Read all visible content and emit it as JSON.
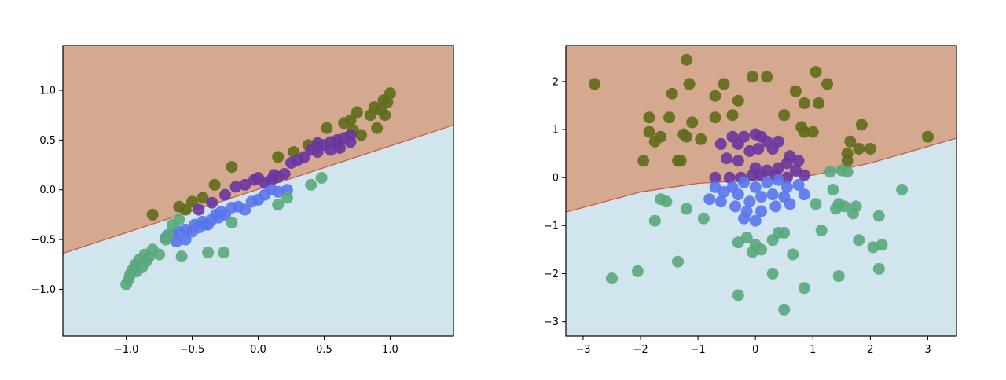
{
  "chart_data": [
    {
      "type": "scatter",
      "xlim": [
        -1.48,
        1.48
      ],
      "ylim": [
        -1.47,
        1.45
      ],
      "xticks": [
        -1.0,
        -0.5,
        0.0,
        0.5,
        1.0
      ],
      "yticks": [
        -1.0,
        -0.5,
        0.0,
        0.5,
        1.0
      ],
      "xtick_labels": [
        "−1.0",
        "−0.5",
        "0.0",
        "0.5",
        "1.0"
      ],
      "ytick_labels": [
        "−1.0",
        "−0.5",
        "0.0",
        "0.5",
        "1.0"
      ],
      "grid": false,
      "decision_boundary": {
        "x": [
          -1.48,
          1.48
        ],
        "y": [
          -0.64,
          0.65
        ]
      },
      "region_colors": {
        "above": "#d5a890",
        "below": "#d1e5ef"
      },
      "series": [
        {
          "color": "#5f6b1b",
          "points": [
            [
              -0.8,
              -0.25
            ],
            [
              -0.6,
              -0.17
            ],
            [
              -0.5,
              -0.12
            ],
            [
              -0.42,
              -0.08
            ],
            [
              -0.33,
              0.05
            ],
            [
              -0.2,
              0.23
            ],
            [
              0.15,
              0.33
            ],
            [
              0.27,
              0.38
            ],
            [
              0.38,
              0.45
            ],
            [
              0.45,
              0.43
            ],
            [
              0.52,
              0.62
            ],
            [
              0.6,
              0.45
            ],
            [
              0.65,
              0.67
            ],
            [
              0.7,
              0.7
            ],
            [
              0.75,
              0.78
            ],
            [
              0.78,
              0.55
            ],
            [
              0.85,
              0.75
            ],
            [
              0.88,
              0.83
            ],
            [
              0.9,
              0.62
            ],
            [
              0.93,
              0.8
            ],
            [
              0.95,
              0.9
            ],
            [
              0.96,
              0.75
            ],
            [
              0.98,
              0.88
            ],
            [
              1.0,
              0.97
            ],
            [
              -0.55,
              -0.2
            ],
            [
              0.72,
              0.6
            ]
          ]
        },
        {
          "color": "#6a35a0",
          "points": [
            [
              -0.45,
              -0.2
            ],
            [
              -0.35,
              -0.13
            ],
            [
              -0.25,
              -0.05
            ],
            [
              -0.17,
              0.03
            ],
            [
              -0.1,
              0.05
            ],
            [
              -0.03,
              0.1
            ],
            [
              0.0,
              0.12
            ],
            [
              0.05,
              0.07
            ],
            [
              0.1,
              0.1
            ],
            [
              0.15,
              0.13
            ],
            [
              0.2,
              0.16
            ],
            [
              0.25,
              0.27
            ],
            [
              0.35,
              0.33
            ],
            [
              0.4,
              0.4
            ],
            [
              0.45,
              0.38
            ],
            [
              0.5,
              0.45
            ],
            [
              0.55,
              0.48
            ],
            [
              0.6,
              0.5
            ],
            [
              0.65,
              0.52
            ],
            [
              0.7,
              0.55
            ],
            [
              0.55,
              0.4
            ],
            [
              0.62,
              0.42
            ],
            [
              0.7,
              0.48
            ],
            [
              0.3,
              0.3
            ],
            [
              0.12,
              0.15
            ],
            [
              0.45,
              0.47
            ]
          ]
        },
        {
          "color": "#5a74ec",
          "points": [
            [
              -0.7,
              -0.48
            ],
            [
              -0.65,
              -0.45
            ],
            [
              -0.6,
              -0.42
            ],
            [
              -0.55,
              -0.4
            ],
            [
              -0.5,
              -0.42
            ],
            [
              -0.48,
              -0.35
            ],
            [
              -0.45,
              -0.38
            ],
            [
              -0.42,
              -0.32
            ],
            [
              -0.4,
              -0.35
            ],
            [
              -0.35,
              -0.3
            ],
            [
              -0.3,
              -0.28
            ],
            [
              -0.28,
              -0.22
            ],
            [
              -0.25,
              -0.25
            ],
            [
              -0.2,
              -0.18
            ],
            [
              -0.15,
              -0.17
            ],
            [
              -0.1,
              -0.2
            ],
            [
              -0.05,
              -0.12
            ],
            [
              0.0,
              -0.1
            ],
            [
              0.05,
              -0.05
            ],
            [
              0.1,
              0.0
            ],
            [
              0.15,
              -0.02
            ],
            [
              0.22,
              0.0
            ],
            [
              -0.62,
              -0.52
            ],
            [
              -0.55,
              -0.5
            ],
            [
              -0.38,
              -0.35
            ],
            [
              -0.32,
              -0.25
            ]
          ]
        },
        {
          "color": "#58a87c",
          "points": [
            [
              -1.0,
              -0.95
            ],
            [
              -0.98,
              -0.9
            ],
            [
              -0.97,
              -0.85
            ],
            [
              -0.95,
              -0.8
            ],
            [
              -0.93,
              -0.75
            ],
            [
              -0.9,
              -0.7
            ],
            [
              -0.88,
              -0.78
            ],
            [
              -0.85,
              -0.72
            ],
            [
              -0.83,
              -0.68
            ],
            [
              -0.8,
              -0.6
            ],
            [
              -0.75,
              -0.65
            ],
            [
              -0.7,
              -0.5
            ],
            [
              -0.68,
              -0.45
            ],
            [
              -0.65,
              -0.35
            ],
            [
              -0.58,
              -0.67
            ],
            [
              -0.38,
              -0.63
            ],
            [
              -0.26,
              -0.63
            ],
            [
              -0.2,
              -0.33
            ],
            [
              0.15,
              -0.15
            ],
            [
              0.22,
              -0.08
            ],
            [
              0.4,
              0.05
            ],
            [
              0.48,
              0.12
            ],
            [
              -0.92,
              -0.82
            ],
            [
              -0.86,
              -0.65
            ],
            [
              -0.6,
              -0.3
            ]
          ]
        }
      ]
    },
    {
      "type": "scatter",
      "xlim": [
        -3.3,
        3.5
      ],
      "ylim": [
        -3.3,
        2.75
      ],
      "xticks": [
        -3,
        -2,
        -1,
        0,
        1,
        2,
        3
      ],
      "yticks": [
        -3,
        -2,
        -1,
        0,
        1,
        2
      ],
      "xtick_labels": [
        "−3",
        "−2",
        "−1",
        "0",
        "1",
        "2",
        "3"
      ],
      "ytick_labels": [
        "−3",
        "−2",
        "−1",
        "0",
        "1",
        "2"
      ],
      "grid": false,
      "decision_boundary": {
        "x": [
          -3.3,
          -2.0,
          -1.0,
          0.0,
          1.0,
          2.0,
          3.5
        ],
        "y": [
          -0.72,
          -0.3,
          -0.12,
          -0.05,
          0.05,
          0.3,
          0.82
        ]
      },
      "region_colors": {
        "above": "#d5a890",
        "below": "#d1e5ef"
      },
      "series": [
        {
          "color": "#5f6b1b",
          "points": [
            [
              -2.8,
              1.95
            ],
            [
              -1.2,
              2.45
            ],
            [
              -1.45,
              1.75
            ],
            [
              -1.15,
              1.95
            ],
            [
              -0.55,
              1.95
            ],
            [
              -0.3,
              1.6
            ],
            [
              -0.7,
              1.7
            ],
            [
              -0.4,
              1.3
            ],
            [
              -0.7,
              1.25
            ],
            [
              -1.1,
              1.15
            ],
            [
              -1.5,
              1.25
            ],
            [
              -1.85,
              1.25
            ],
            [
              -1.85,
              0.95
            ],
            [
              -1.65,
              0.85
            ],
            [
              -1.75,
              0.75
            ],
            [
              -1.2,
              0.85
            ],
            [
              -1.25,
              0.9
            ],
            [
              -0.95,
              0.8
            ],
            [
              -1.35,
              0.35
            ],
            [
              -1.3,
              0.35
            ],
            [
              -1.95,
              0.35
            ],
            [
              -0.05,
              2.1
            ],
            [
              0.2,
              2.1
            ],
            [
              0.7,
              1.8
            ],
            [
              0.85,
              1.55
            ],
            [
              1.05,
              2.2
            ],
            [
              1.25,
              1.95
            ],
            [
              0.5,
              1.3
            ],
            [
              1.1,
              1.55
            ],
            [
              0.8,
              1.05
            ],
            [
              1.0,
              0.95
            ],
            [
              1.85,
              1.1
            ],
            [
              1.65,
              0.75
            ],
            [
              1.6,
              0.5
            ],
            [
              1.6,
              0.35
            ],
            [
              1.8,
              0.6
            ],
            [
              2.0,
              0.6
            ],
            [
              3.0,
              0.85
            ],
            [
              0.85,
              0.95
            ]
          ]
        },
        {
          "color": "#6a35a0",
          "points": [
            [
              -0.6,
              0.7
            ],
            [
              -0.4,
              0.85
            ],
            [
              -0.2,
              0.85
            ],
            [
              -0.3,
              0.7
            ],
            [
              0.0,
              0.9
            ],
            [
              0.1,
              0.85
            ],
            [
              0.2,
              0.75
            ],
            [
              0.4,
              0.75
            ],
            [
              -0.5,
              0.4
            ],
            [
              -0.3,
              0.35
            ],
            [
              -0.1,
              0.55
            ],
            [
              0.05,
              0.6
            ],
            [
              0.3,
              0.6
            ],
            [
              0.6,
              0.45
            ],
            [
              0.55,
              0.3
            ],
            [
              0.75,
              0.35
            ],
            [
              -0.7,
              0.0
            ],
            [
              -0.45,
              0.0
            ],
            [
              -0.25,
              0.0
            ],
            [
              0.0,
              0.2
            ],
            [
              0.2,
              0.15
            ],
            [
              0.35,
              0.05
            ],
            [
              0.55,
              0.0
            ],
            [
              0.7,
              0.15
            ],
            [
              0.85,
              0.05
            ],
            [
              0.1,
              0.05
            ],
            [
              -0.05,
              0.05
            ],
            [
              0.4,
              0.2
            ]
          ]
        },
        {
          "color": "#5a74ec",
          "points": [
            [
              -0.7,
              -0.2
            ],
            [
              -0.55,
              -0.3
            ],
            [
              -0.4,
              -0.2
            ],
            [
              -0.2,
              -0.1
            ],
            [
              0.0,
              -0.2
            ],
            [
              0.2,
              -0.1
            ],
            [
              0.4,
              -0.05
            ],
            [
              0.55,
              -0.2
            ],
            [
              0.75,
              -0.15
            ],
            [
              0.85,
              -0.35
            ],
            [
              -0.8,
              -0.45
            ],
            [
              -0.6,
              -0.5
            ],
            [
              -0.35,
              -0.6
            ],
            [
              -0.15,
              -0.7
            ],
            [
              0.1,
              -0.7
            ],
            [
              0.35,
              -0.6
            ],
            [
              0.6,
              -0.55
            ],
            [
              -0.2,
              -0.85
            ],
            [
              0.0,
              -0.9
            ],
            [
              -0.3,
              -0.35
            ],
            [
              0.1,
              -0.4
            ],
            [
              0.3,
              -0.35
            ],
            [
              -0.1,
              -0.5
            ],
            [
              0.5,
              -0.4
            ]
          ]
        },
        {
          "color": "#58a87c",
          "points": [
            [
              -2.5,
              -2.1
            ],
            [
              -2.05,
              -1.95
            ],
            [
              -1.65,
              -0.45
            ],
            [
              -1.55,
              -0.5
            ],
            [
              -1.75,
              -0.9
            ],
            [
              -1.2,
              -0.65
            ],
            [
              -0.9,
              -0.85
            ],
            [
              -1.35,
              -1.75
            ],
            [
              -0.3,
              -1.35
            ],
            [
              0.0,
              -1.4
            ],
            [
              -0.05,
              -1.55
            ],
            [
              0.1,
              -1.5
            ],
            [
              -0.15,
              -1.25
            ],
            [
              0.3,
              -1.3
            ],
            [
              0.4,
              -1.15
            ],
            [
              0.5,
              -1.15
            ],
            [
              0.65,
              -1.6
            ],
            [
              0.3,
              -2.0
            ],
            [
              0.85,
              -2.3
            ],
            [
              0.5,
              -2.75
            ],
            [
              -0.3,
              -2.45
            ],
            [
              1.35,
              -0.25
            ],
            [
              1.45,
              -0.55
            ],
            [
              1.55,
              -0.6
            ],
            [
              1.75,
              -0.6
            ],
            [
              1.15,
              -1.1
            ],
            [
              1.45,
              -2.05
            ],
            [
              1.8,
              -1.3
            ],
            [
              2.05,
              -1.45
            ],
            [
              2.2,
              -1.4
            ],
            [
              2.15,
              -1.9
            ],
            [
              2.15,
              -0.8
            ],
            [
              2.55,
              -0.25
            ],
            [
              1.4,
              -0.65
            ],
            [
              1.7,
              -0.75
            ],
            [
              1.5,
              0.15
            ],
            [
              1.6,
              0.12
            ],
            [
              1.3,
              0.12
            ],
            [
              1.05,
              -0.55
            ]
          ]
        }
      ]
    }
  ]
}
